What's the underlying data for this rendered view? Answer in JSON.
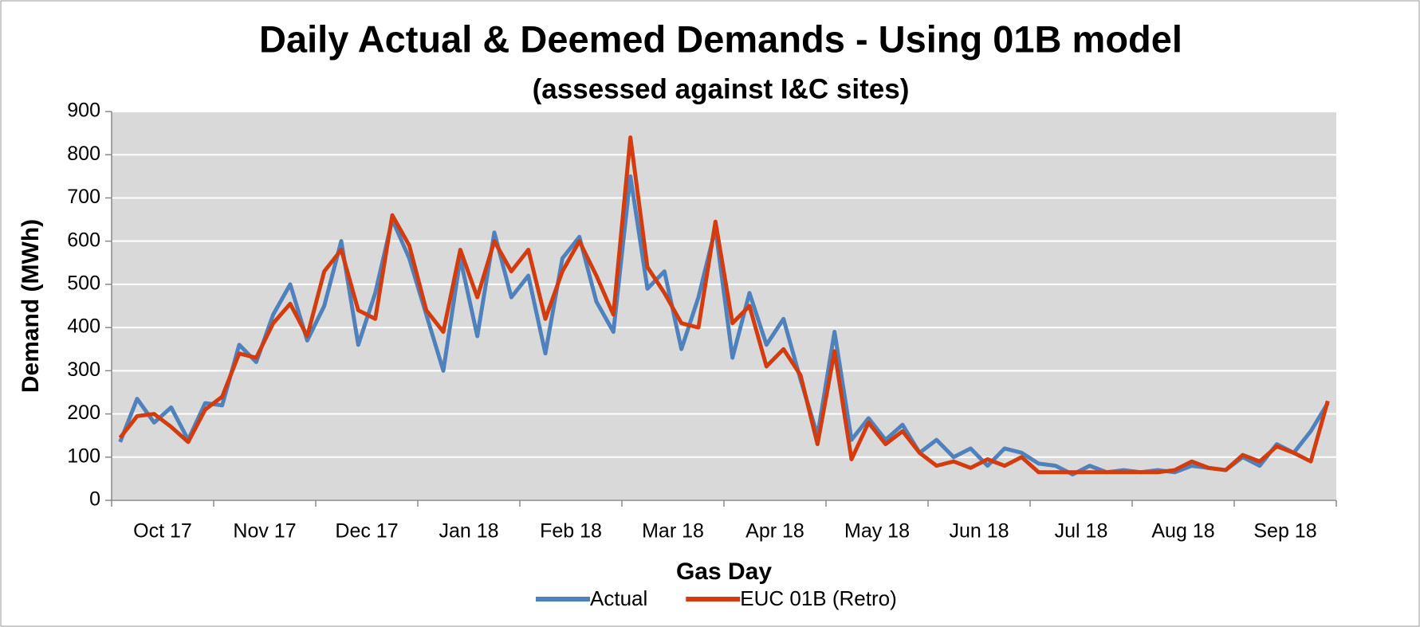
{
  "chart_data": {
    "type": "line",
    "title": "Daily Actual & Deemed Demands - Using 01B model",
    "subtitle": "(assessed against I&C sites)",
    "x_label": "Gas Day",
    "y_label": "Demand (MWh)",
    "categories": [
      "Oct 17",
      null,
      null,
      null,
      null,
      null,
      "Nov 17",
      null,
      null,
      null,
      null,
      null,
      "Dec 17",
      null,
      null,
      null,
      null,
      null,
      "Jan 18",
      null,
      null,
      null,
      null,
      null,
      "Feb 18",
      null,
      null,
      null,
      null,
      null,
      "Mar 18",
      null,
      null,
      null,
      null,
      null,
      "Apr 18",
      null,
      null,
      null,
      null,
      null,
      "May 18",
      null,
      null,
      null,
      null,
      null,
      "Jun 18",
      null,
      null,
      null,
      null,
      null,
      "Jul 18",
      null,
      null,
      null,
      null,
      null,
      "Aug 18",
      null,
      null,
      null,
      null,
      null,
      "Sep 18",
      null,
      null,
      null,
      null,
      null
    ],
    "series": [
      {
        "name": "Actual",
        "color": "#4f81bd",
        "values": [
          135,
          235,
          180,
          215,
          140,
          225,
          220,
          360,
          320,
          430,
          500,
          370,
          450,
          600,
          360,
          480,
          650,
          560,
          430,
          300,
          560,
          380,
          620,
          470,
          520,
          340,
          560,
          610,
          460,
          390,
          750,
          490,
          530,
          350,
          470,
          630,
          330,
          480,
          360,
          420,
          280,
          150,
          390,
          140,
          190,
          140,
          175,
          110,
          140,
          100,
          120,
          80,
          120,
          110,
          85,
          80,
          60,
          80,
          65,
          70,
          65,
          70,
          65,
          80,
          75,
          70,
          100,
          80,
          130,
          110,
          160,
          225
        ]
      },
      {
        "name": "EUC 01B (Retro)",
        "color": "#d23c0f",
        "values": [
          145,
          195,
          200,
          170,
          135,
          210,
          240,
          340,
          330,
          410,
          455,
          380,
          530,
          580,
          440,
          420,
          660,
          590,
          440,
          390,
          580,
          470,
          600,
          530,
          580,
          420,
          530,
          600,
          520,
          430,
          840,
          540,
          480,
          410,
          400,
          645,
          410,
          450,
          310,
          350,
          290,
          130,
          345,
          95,
          180,
          130,
          160,
          110,
          80,
          90,
          75,
          95,
          80,
          100,
          65,
          65,
          65,
          65,
          65,
          65,
          65,
          65,
          70,
          90,
          75,
          70,
          105,
          90,
          125,
          110,
          90,
          230
        ]
      }
    ],
    "ylim": [
      0,
      900
    ],
    "yticks": [
      0,
      100,
      200,
      300,
      400,
      500,
      600,
      700,
      800,
      900
    ],
    "grid": true,
    "legend": "bottom"
  }
}
